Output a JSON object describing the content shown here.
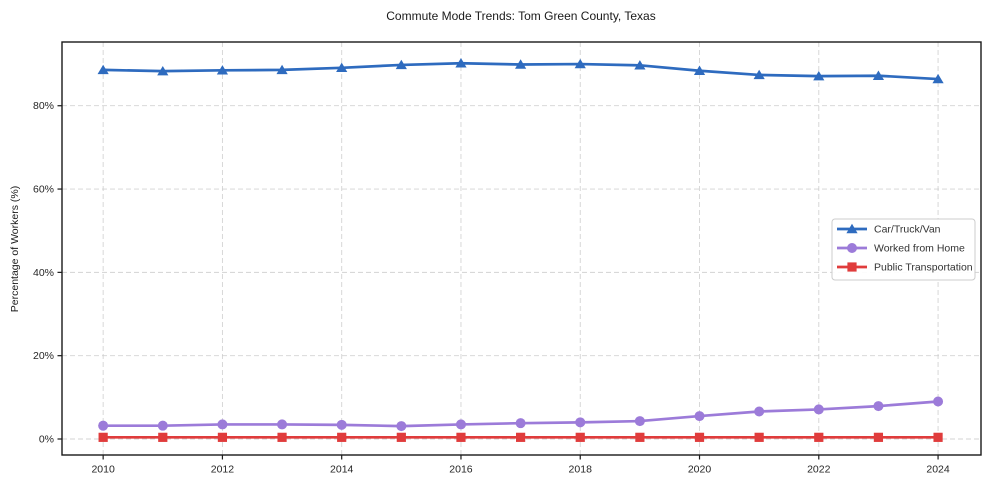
{
  "chart_data": {
    "type": "line",
    "title": "Commute Mode Trends: Tom Green County, Texas",
    "xlabel": "",
    "ylabel": "Percentage of Workers (%)",
    "x": [
      2010,
      2011,
      2012,
      2013,
      2014,
      2015,
      2016,
      2017,
      2018,
      2019,
      2020,
      2021,
      2022,
      2023,
      2024
    ],
    "series": [
      {
        "name": "Car/Truck/Van",
        "color": "#2e6bbf",
        "marker": "triangle",
        "values": [
          88.6,
          88.3,
          88.5,
          88.6,
          89.1,
          89.8,
          90.2,
          89.9,
          90.0,
          89.7,
          88.4,
          87.4,
          87.1,
          87.2,
          86.4
        ]
      },
      {
        "name": "Worked from Home",
        "color": "#9c7bd9",
        "marker": "circle",
        "values": [
          3.2,
          3.2,
          3.5,
          3.5,
          3.4,
          3.1,
          3.5,
          3.8,
          4.0,
          4.3,
          5.5,
          6.6,
          7.1,
          7.9,
          9.0
        ]
      },
      {
        "name": "Public Transportation",
        "color": "#e03c3c",
        "marker": "square",
        "values": [
          0.4,
          0.4,
          0.4,
          0.4,
          0.4,
          0.4,
          0.4,
          0.4,
          0.4,
          0.4,
          0.4,
          0.4,
          0.4,
          0.4,
          0.4
        ]
      }
    ],
    "x_ticks": [
      2010,
      2012,
      2014,
      2016,
      2018,
      2020,
      2022,
      2024
    ],
    "y_ticks": [
      0,
      20,
      40,
      60,
      80
    ],
    "y_tick_suffix": "%",
    "xlim": [
      2009.31,
      2024.72
    ],
    "ylim": [
      -3.84,
      95.3
    ],
    "grid": true,
    "legend_position": "right-middle",
    "colors": {
      "grid": "#cccccc",
      "spine": "#1a1a1a",
      "tick_label": "#262626",
      "legend_border": "#cccccc",
      "legend_text": "#333333",
      "background": "#ffffff"
    }
  }
}
